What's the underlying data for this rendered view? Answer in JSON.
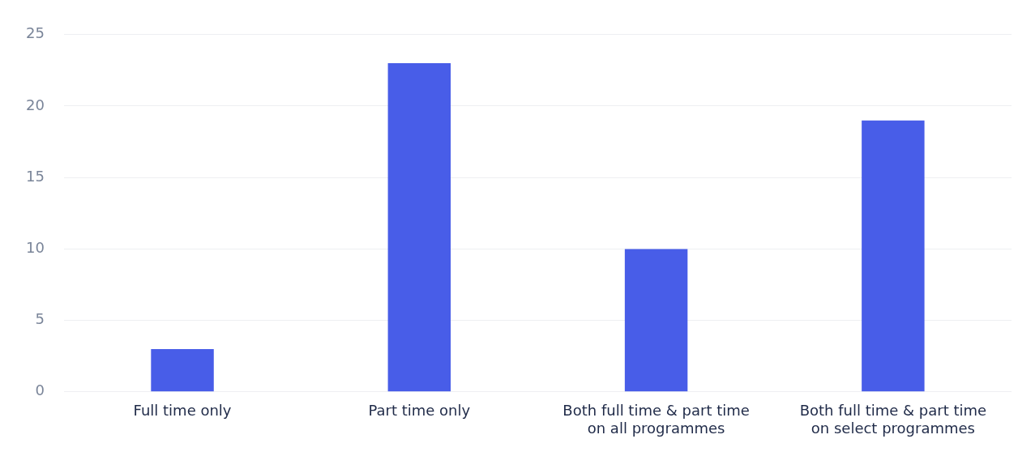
{
  "chart_data": {
    "type": "bar",
    "categories": [
      "Full time only",
      "Part time only",
      "Both full time & part time on all programmes",
      "Both full time & part time on select programmes"
    ],
    "values": [
      3,
      23,
      10,
      19
    ],
    "color": "#485de8",
    "ylim": [
      0,
      25
    ],
    "yticks": [
      0,
      5,
      10,
      15,
      20,
      25
    ],
    "grid": "y",
    "legend": false
  }
}
